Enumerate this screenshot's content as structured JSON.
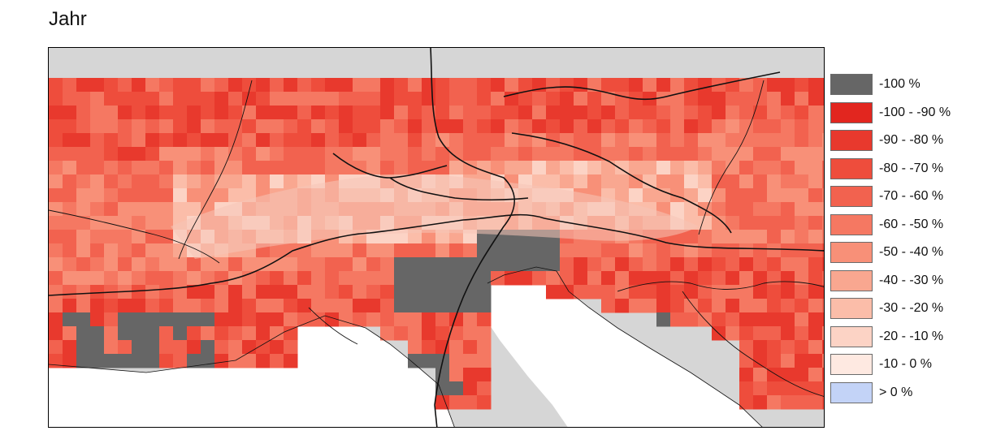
{
  "title": "Jahr",
  "legend": [
    {
      "label": "-100 %",
      "color": "#666666"
    },
    {
      "label": "-100 - -90 %",
      "color": "#e2261f"
    },
    {
      "label": "-90 - -80 %",
      "color": "#e8392d"
    },
    {
      "label": "-80 - -70 %",
      "color": "#ee4d3c"
    },
    {
      "label": "-70 - -60 %",
      "color": "#f2624f"
    },
    {
      "label": "-60 - -50 %",
      "color": "#f57862"
    },
    {
      "label": "-50 - -40 %",
      "color": "#f89078"
    },
    {
      "label": "-40 - -30 %",
      "color": "#f9a790"
    },
    {
      "label": "-30 - -20 %",
      "color": "#fbbda9"
    },
    {
      "label": "-20 - -10 %",
      "color": "#fcd3c5"
    },
    {
      "label": "-10 - 0 %",
      "color": "#fee9e1"
    },
    {
      "label": "> 0 %",
      "color": "#c3d3f7"
    }
  ],
  "map": {
    "sea_color": "#ffffff",
    "land_color": "#d4d4d4",
    "no_data_color": "#666666",
    "base_change_color": "#e8584a",
    "highland_change_color": "#f5b9a8"
  }
}
